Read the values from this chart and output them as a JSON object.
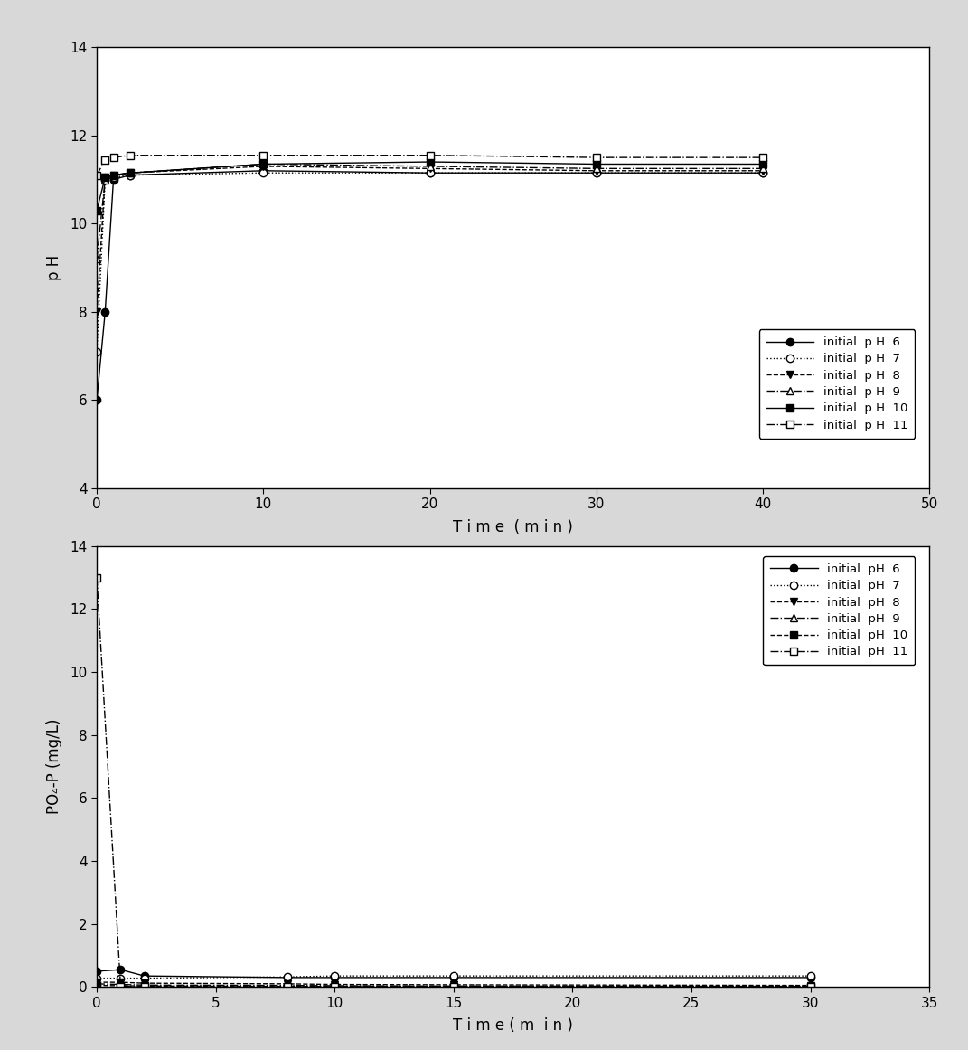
{
  "top_chart": {
    "xlabel": "T i m e  ( m i n )",
    "ylabel": "p H",
    "xlim": [
      0,
      50
    ],
    "ylim": [
      4,
      14
    ],
    "xticks": [
      0,
      10,
      20,
      30,
      40,
      50
    ],
    "yticks": [
      4,
      6,
      8,
      10,
      12,
      14
    ],
    "series": [
      {
        "label": "initial  p H  6",
        "x": [
          0,
          0.5,
          1,
          2,
          10,
          20,
          30,
          40
        ],
        "y": [
          6.0,
          8.0,
          11.0,
          11.1,
          11.2,
          11.15,
          11.15,
          11.15
        ],
        "linestyle": "-",
        "marker": "o",
        "fillstyle": "full",
        "color": "black"
      },
      {
        "label": "initial  p H  7",
        "x": [
          0,
          0.5,
          1,
          2,
          10,
          20,
          30,
          40
        ],
        "y": [
          7.1,
          11.0,
          11.05,
          11.1,
          11.15,
          11.15,
          11.15,
          11.15
        ],
        "linestyle": ":",
        "marker": "o",
        "fillstyle": "none",
        "color": "black"
      },
      {
        "label": "initial  p H  8",
        "x": [
          0,
          0.5,
          1,
          2,
          10,
          20,
          30,
          40
        ],
        "y": [
          8.0,
          11.05,
          11.1,
          11.15,
          11.3,
          11.25,
          11.2,
          11.2
        ],
        "linestyle": "--",
        "marker": "v",
        "fillstyle": "full",
        "color": "black"
      },
      {
        "label": "initial  p H  9",
        "x": [
          0,
          0.5,
          1,
          2,
          10,
          20,
          30,
          40
        ],
        "y": [
          9.2,
          11.0,
          11.1,
          11.15,
          11.35,
          11.3,
          11.25,
          11.25
        ],
        "linestyle": "-.",
        "marker": "^",
        "fillstyle": "none",
        "color": "black"
      },
      {
        "label": "initial  p H  10",
        "x": [
          0,
          0.5,
          1,
          2,
          10,
          20,
          30,
          40
        ],
        "y": [
          10.3,
          11.05,
          11.1,
          11.15,
          11.35,
          11.4,
          11.35,
          11.35
        ],
        "linestyle": "-",
        "marker": "s",
        "fillstyle": "full",
        "color": "black"
      },
      {
        "label": "initial  p H  11",
        "x": [
          0,
          0.5,
          1,
          2,
          10,
          20,
          30,
          40
        ],
        "y": [
          11.1,
          11.45,
          11.5,
          11.55,
          11.55,
          11.55,
          11.5,
          11.5
        ],
        "linestyle": "-.",
        "marker": "s",
        "fillstyle": "none",
        "color": "black"
      }
    ]
  },
  "bottom_chart": {
    "xlabel": "T i m e ( m  i n )",
    "ylabel": "PO₄-P (mg/L)",
    "xlim": [
      0,
      35
    ],
    "ylim": [
      0,
      14
    ],
    "xticks": [
      0,
      5,
      10,
      15,
      20,
      25,
      30,
      35
    ],
    "yticks": [
      0,
      2,
      4,
      6,
      8,
      10,
      12,
      14
    ],
    "series": [
      {
        "label": "initial  pH  6",
        "x": [
          0,
          1,
          2,
          8,
          10,
          15,
          30
        ],
        "y": [
          0.5,
          0.55,
          0.35,
          0.3,
          0.3,
          0.3,
          0.3
        ],
        "linestyle": "-",
        "marker": "o",
        "fillstyle": "full",
        "color": "black"
      },
      {
        "label": "initial  pH  7",
        "x": [
          0,
          1,
          2,
          8,
          10,
          15,
          30
        ],
        "y": [
          0.28,
          0.28,
          0.28,
          0.32,
          0.35,
          0.35,
          0.35
        ],
        "linestyle": ":",
        "marker": "o",
        "fillstyle": "none",
        "color": "black"
      },
      {
        "label": "initial  pH  8",
        "x": [
          0,
          1,
          2,
          8,
          10,
          15,
          30
        ],
        "y": [
          0.15,
          0.15,
          0.12,
          0.1,
          0.08,
          0.07,
          0.05
        ],
        "linestyle": "--",
        "marker": "v",
        "fillstyle": "full",
        "color": "black"
      },
      {
        "label": "initial  pH  9",
        "x": [
          0,
          1,
          2,
          8,
          10,
          15,
          30
        ],
        "y": [
          0.1,
          0.08,
          0.06,
          0.05,
          0.04,
          0.03,
          0.02
        ],
        "linestyle": "-.",
        "marker": "^",
        "fillstyle": "none",
        "color": "black"
      },
      {
        "label": "initial  pH  10",
        "x": [
          0,
          1,
          2,
          8,
          10,
          15,
          30
        ],
        "y": [
          0.05,
          0.04,
          0.03,
          0.02,
          0.02,
          0.02,
          0.02
        ],
        "linestyle": "--",
        "marker": "s",
        "fillstyle": "full",
        "color": "black"
      },
      {
        "label": "initial  pH  11",
        "x": [
          0,
          1,
          2,
          8,
          10,
          15,
          30
        ],
        "y": [
          13.0,
          0.02,
          0.01,
          0.01,
          0.01,
          0.02,
          0.02
        ],
        "linestyle": "-.",
        "marker": "s",
        "fillstyle": "none",
        "color": "black"
      }
    ]
  },
  "fig_facecolor": "#d8d8d8",
  "plot_facecolor": "#ffffff",
  "font_family": "DejaVu Sans"
}
